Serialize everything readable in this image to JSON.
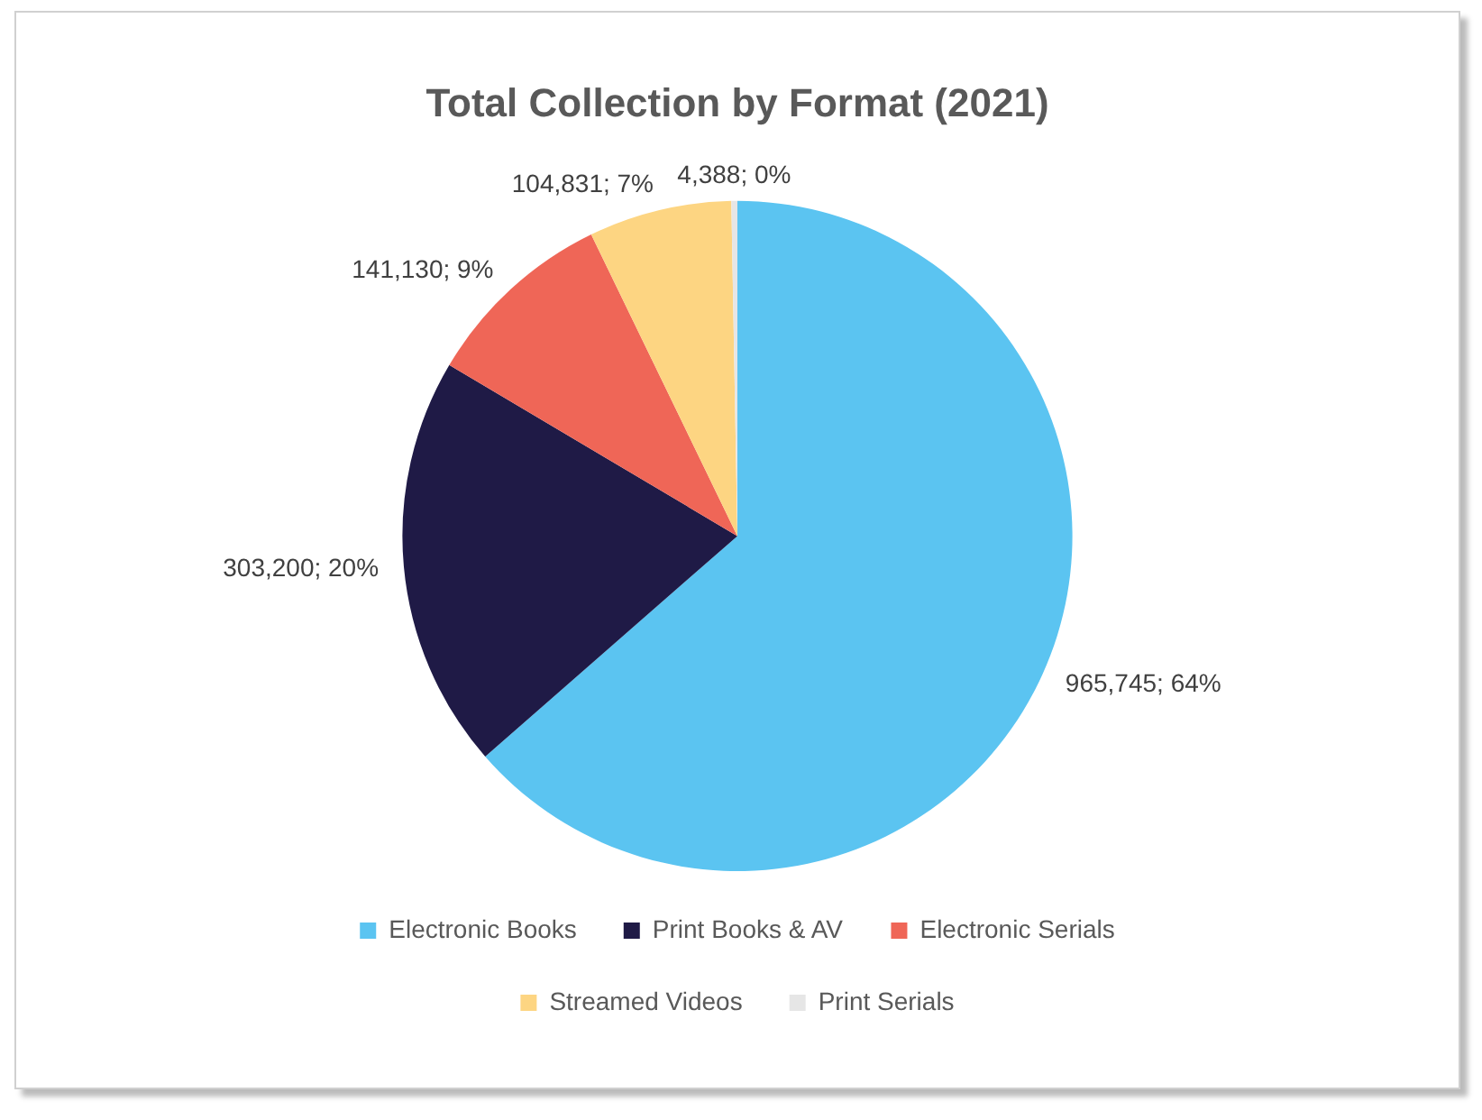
{
  "chart_data": {
    "type": "pie",
    "title": "Total Collection by Format (2021)",
    "categories": [
      "Electronic Books",
      "Print Books & AV",
      "Electronic Serials",
      "Streamed Videos",
      "Print Serials"
    ],
    "values": [
      965745,
      303200,
      141130,
      104831,
      4388
    ],
    "colors": [
      "#5bc4f1",
      "#1f1a46",
      "#ef6657",
      "#fdd582",
      "#e6e6e6"
    ],
    "value_labels": [
      "965,745; 64%",
      "303,200; 20%",
      "141,130; 9%",
      "104,831; 7%",
      "4,388; 0%"
    ],
    "legend": "bottom"
  }
}
